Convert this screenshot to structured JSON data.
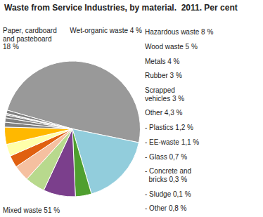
{
  "chart_data": {
    "type": "pie",
    "title": "Waste from Service Industries, by material.  2011. Per cent",
    "categories": [
      "Mixed waste 51 %",
      "Paper, cardboard\nand pasteboard\n18 %",
      "Wet-organic waste 4 %",
      "Hazardous waste 8 %",
      "Wood waste 5 %",
      "Metals 4 %",
      "Rubber 3 %",
      "Scrapped\nvehicles 3 %",
      "Other 4,3 %",
      "- Plastics 1,2 %",
      "- EE-waste 1,1 %",
      "- Glass 0,7 %",
      "- Concrete and\n  bricks 0,3 %",
      "- Sludge 0,1 %",
      "- Other 0,8 %"
    ],
    "values": [
      51,
      18,
      4,
      8,
      5,
      4,
      3,
      3,
      4.3,
      1.2,
      1.1,
      0.7,
      0.3,
      0.1,
      0.8
    ],
    "colors": [
      "#999999",
      "#92CDDC",
      "#4F9F2F",
      "#7B3F8C",
      "#B8D98D",
      "#F5C0A0",
      "#E06010",
      "#FFFFAA",
      "#FFB800",
      "#808080",
      "#808080",
      "#808080",
      "#808080",
      "#808080",
      "#808080"
    ]
  }
}
